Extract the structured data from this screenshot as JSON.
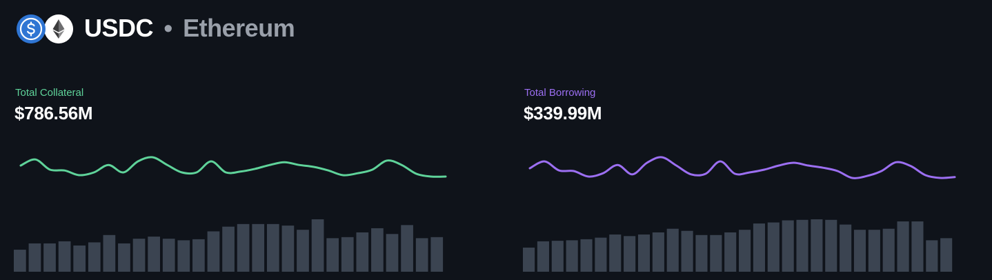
{
  "header": {
    "token": "USDC",
    "separator": "•",
    "network": "Ethereum",
    "icons": [
      "usdc-coin-icon",
      "ethereum-coin-icon"
    ]
  },
  "colors": {
    "background": "#0f131a",
    "collateral": "#5fd39a",
    "borrowing": "#9c6ff2",
    "bars": "#3b4451",
    "muted_text": "#9aa0aa",
    "usdc_blue": "#2f75d3"
  },
  "panels": {
    "collateral": {
      "label": "Total Collateral",
      "value": "$786.56M"
    },
    "borrowing": {
      "label": "Total Borrowing",
      "value": "$339.99M"
    }
  },
  "chart_data": [
    {
      "type": "line",
      "name": "collateral-trend",
      "values": [
        0.7,
        0.92,
        0.55,
        0.52,
        0.35,
        0.45,
        0.72,
        0.45,
        0.85,
        1.0,
        0.72,
        0.45,
        0.45,
        0.85,
        0.45,
        0.48,
        0.58,
        0.72,
        0.82,
        0.72,
        0.65,
        0.52,
        0.35,
        0.42,
        0.55,
        0.88,
        0.72,
        0.4,
        0.3,
        0.3
      ],
      "ylim": [
        0,
        1
      ]
    },
    {
      "type": "bar",
      "name": "collateral-volume",
      "values": [
        0.42,
        0.54,
        0.54,
        0.58,
        0.5,
        0.56,
        0.7,
        0.54,
        0.63,
        0.67,
        0.63,
        0.6,
        0.62,
        0.77,
        0.86,
        0.91,
        0.91,
        0.91,
        0.88,
        0.8,
        1.0,
        0.64,
        0.66,
        0.75,
        0.83,
        0.72,
        0.89,
        0.64,
        0.66
      ],
      "ylim": [
        0,
        1
      ]
    },
    {
      "type": "line",
      "name": "borrowing-trend",
      "values": [
        0.6,
        0.85,
        0.52,
        0.5,
        0.3,
        0.42,
        0.72,
        0.38,
        0.8,
        1.0,
        0.7,
        0.38,
        0.4,
        0.85,
        0.4,
        0.45,
        0.55,
        0.7,
        0.8,
        0.7,
        0.62,
        0.5,
        0.25,
        0.32,
        0.5,
        0.82,
        0.68,
        0.35,
        0.25,
        0.28
      ],
      "ylim": [
        0,
        1
      ]
    },
    {
      "type": "bar",
      "name": "borrowing-volume",
      "values": [
        0.46,
        0.58,
        0.59,
        0.6,
        0.62,
        0.65,
        0.71,
        0.68,
        0.71,
        0.75,
        0.82,
        0.78,
        0.7,
        0.7,
        0.75,
        0.8,
        0.92,
        0.94,
        0.98,
        0.99,
        1.0,
        0.99,
        0.9,
        0.8,
        0.8,
        0.82,
        0.96,
        0.96,
        0.6,
        0.64
      ],
      "ylim": [
        0,
        1
      ]
    }
  ]
}
